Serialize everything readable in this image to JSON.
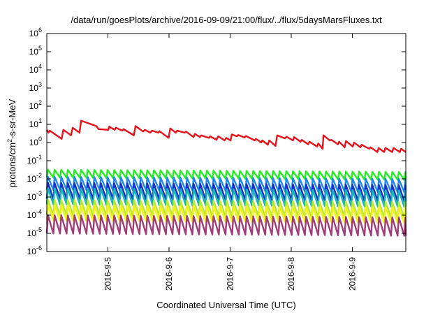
{
  "chart_data": {
    "type": "line",
    "title": "/data/run/goesPlots/archive/2016-09-09/21:00/flux/../flux/5daysMarsFluxes.txt",
    "xlabel": "Coordinated Universal Time (UTC)",
    "ylabel": {
      "base": "protons/cm",
      "sup": "2",
      "rest": "-s-sr-MeV"
    },
    "y_scale": "log",
    "ylim": [
      1e-06,
      1000000.0
    ],
    "y_ticks": [
      {
        "base": "10",
        "exp": "6",
        "value": 6
      },
      {
        "base": "10",
        "exp": "5",
        "value": 5
      },
      {
        "base": "10",
        "exp": "4",
        "value": 4
      },
      {
        "base": "10",
        "exp": "3",
        "value": 3
      },
      {
        "base": "10",
        "exp": "2",
        "value": 2
      },
      {
        "base": "10",
        "exp": "1",
        "value": 1
      },
      {
        "base": "10",
        "exp": "0",
        "value": 0
      },
      {
        "base": "10",
        "exp": "-1",
        "value": -1
      },
      {
        "base": "10",
        "exp": "-2",
        "value": -2
      },
      {
        "base": "10",
        "exp": "-3",
        "value": -3
      },
      {
        "base": "10",
        "exp": "-4",
        "value": -4
      },
      {
        "base": "10",
        "exp": "-5",
        "value": -5
      },
      {
        "base": "10",
        "exp": "-6",
        "value": -6
      }
    ],
    "xlim": [
      "2016-09-04 00:00",
      "2016-09-09 21:00"
    ],
    "x_ticks": [
      {
        "label": "2016-9-5",
        "date": "2016-09-05 00:00"
      },
      {
        "label": "2016-9-6",
        "date": "2016-09-06 00:00"
      },
      {
        "label": "2016-9-7",
        "date": "2016-09-07 00:00"
      },
      {
        "label": "2016-9-8",
        "date": "2016-09-08 00:00"
      },
      {
        "label": "2016-9-9",
        "date": "2016-09-09 00:00"
      }
    ],
    "grid": false,
    "legend": "none",
    "series": [
      {
        "color": "#e8111a",
        "points": [
          [
            "2016-09-04 00:00",
            5.0
          ],
          [
            "2016-09-04 00:40",
            3.5
          ],
          [
            "2016-09-04 01:10",
            4.5
          ],
          [
            "2016-09-04 05:50",
            1.6
          ],
          [
            "2016-09-04 06:30",
            5.0
          ],
          [
            "2016-09-04 09:30",
            2.5
          ],
          [
            "2016-09-04 10:10",
            6.5
          ],
          [
            "2016-09-04 12:50",
            3.5
          ],
          [
            "2016-09-04 13:30",
            16.0
          ],
          [
            "2016-09-04 19:30",
            8.0
          ],
          [
            "2016-09-04 20:20",
            5.5
          ],
          [
            "2016-09-05 00:10",
            5.0
          ],
          [
            "2016-09-05 00:30",
            7.5
          ],
          [
            "2016-09-05 02:40",
            5.0
          ],
          [
            "2016-09-05 03:10",
            6.5
          ],
          [
            "2016-09-05 05:40",
            4.5
          ],
          [
            "2016-09-05 06:10",
            5.5
          ],
          [
            "2016-09-05 10:10",
            2.5
          ],
          [
            "2016-09-05 10:50",
            8.0
          ],
          [
            "2016-09-05 13:50",
            4.0
          ],
          [
            "2016-09-05 14:30",
            5.0
          ],
          [
            "2016-09-05 16:40",
            3.5
          ],
          [
            "2016-09-05 17:20",
            4.5
          ],
          [
            "2016-09-05 19:50",
            3.5
          ],
          [
            "2016-09-05 20:20",
            4.2
          ],
          [
            "2016-09-05 23:50",
            1.8
          ],
          [
            "2016-09-06 00:30",
            6.0
          ],
          [
            "2016-09-06 02:40",
            3.5
          ],
          [
            "2016-09-06 03:10",
            4.5
          ],
          [
            "2016-09-06 06:10",
            3.5
          ],
          [
            "2016-09-06 06:40",
            4.0
          ],
          [
            "2016-09-06 09:40",
            2.0
          ],
          [
            "2016-09-06 10:10",
            3.0
          ],
          [
            "2016-09-06 12:10",
            2.0
          ],
          [
            "2016-09-06 12:40",
            2.5
          ],
          [
            "2016-09-06 15:40",
            1.8
          ],
          [
            "2016-09-06 16:10",
            2.2
          ],
          [
            "2016-09-06 18:40",
            1.4
          ],
          [
            "2016-09-06 19:20",
            2.2
          ],
          [
            "2016-09-06 21:50",
            1.3
          ],
          [
            "2016-09-06 22:30",
            1.8
          ],
          [
            "2016-09-07 00:10",
            1.3
          ],
          [
            "2016-09-07 00:40",
            2.8
          ],
          [
            "2016-09-07 02:40",
            2.2
          ],
          [
            "2016-09-07 03:10",
            2.6
          ],
          [
            "2016-09-07 05:40",
            1.9
          ],
          [
            "2016-09-07 06:10",
            2.3
          ],
          [
            "2016-09-07 09:40",
            1.3
          ],
          [
            "2016-09-07 10:10",
            1.6
          ],
          [
            "2016-09-07 12:10",
            1.0
          ],
          [
            "2016-09-07 12:40",
            1.3
          ],
          [
            "2016-09-07 14:50",
            0.75
          ],
          [
            "2016-09-07 15:20",
            1.3
          ],
          [
            "2016-09-07 17:50",
            0.65
          ],
          [
            "2016-09-07 18:30",
            2.5
          ],
          [
            "2016-09-07 21:30",
            1.7
          ],
          [
            "2016-09-07 22:10",
            2.1
          ],
          [
            "2016-09-08 00:40",
            1.3
          ],
          [
            "2016-09-08 01:10",
            2.0
          ],
          [
            "2016-09-08 03:40",
            1.1
          ],
          [
            "2016-09-08 04:10",
            1.4
          ],
          [
            "2016-09-08 06:40",
            0.8
          ],
          [
            "2016-09-08 07:10",
            1.1
          ],
          [
            "2016-09-08 10:10",
            0.6
          ],
          [
            "2016-09-08 10:40",
            0.9
          ],
          [
            "2016-09-08 12:20",
            0.45
          ],
          [
            "2016-09-08 12:40",
            2.5
          ],
          [
            "2016-09-08 15:10",
            1.3
          ],
          [
            "2016-09-08 15:50",
            1.4
          ],
          [
            "2016-09-08 18:20",
            0.8
          ],
          [
            "2016-09-08 18:50",
            1.1
          ],
          [
            "2016-09-08 21:00",
            0.55
          ],
          [
            "2016-09-08 21:30",
            1.2
          ],
          [
            "2016-09-09 00:10",
            0.6
          ],
          [
            "2016-09-09 00:40",
            1.0
          ],
          [
            "2016-09-09 03:10",
            0.55
          ],
          [
            "2016-09-09 03:40",
            0.75
          ],
          [
            "2016-09-09 06:40",
            0.45
          ],
          [
            "2016-09-09 07:10",
            0.55
          ],
          [
            "2016-09-09 09:50",
            0.3
          ],
          [
            "2016-09-09 10:20",
            0.5
          ],
          [
            "2016-09-09 12:30",
            0.3
          ],
          [
            "2016-09-09 13:00",
            0.5
          ],
          [
            "2016-09-09 15:40",
            0.3
          ],
          [
            "2016-09-09 16:10",
            0.5
          ],
          [
            "2016-09-09 18:40",
            0.3
          ],
          [
            "2016-09-09 19:10",
            0.45
          ],
          [
            "2016-09-09 21:00",
            0.3
          ]
        ]
      },
      {
        "color": "#22ee22",
        "sawtooth": {
          "start": "2016-09-04 00:00",
          "end": "2016-09-09 21:00",
          "period_hours": 2.6,
          "low": 0.012,
          "high": 0.032,
          "trend_end_factor": 0.75
        }
      },
      {
        "color": "#1e88ee",
        "sawtooth": {
          "start": "2016-09-04 00:00",
          "end": "2016-09-09 21:00",
          "period_hours": 2.6,
          "low": 0.0025,
          "high": 0.013,
          "trend_end_factor": 0.75
        }
      },
      {
        "color": "#1a2fc8",
        "sawtooth": {
          "start": "2016-09-04 00:00",
          "end": "2016-09-09 21:00",
          "period_hours": 2.6,
          "low": 0.0008,
          "high": 0.006,
          "trend_end_factor": 0.75
        }
      },
      {
        "color": "#15b7b5",
        "sawtooth": {
          "start": "2016-09-04 00:00",
          "end": "2016-09-09 21:00",
          "period_hours": 2.6,
          "low": 0.0004,
          "high": 0.003,
          "trend_end_factor": 0.75
        }
      },
      {
        "color": "#b8e830",
        "sawtooth": {
          "start": "2016-09-04 00:00",
          "end": "2016-09-09 21:00",
          "period_hours": 2.6,
          "low": 0.0001,
          "high": 0.0007,
          "trend_end_factor": 0.75
        }
      },
      {
        "color": "#f2f21a",
        "sawtooth": {
          "start": "2016-09-04 00:00",
          "end": "2016-09-09 21:00",
          "period_hours": 2.6,
          "low": 5e-05,
          "high": 0.00035,
          "trend_end_factor": 0.75
        }
      },
      {
        "color": "#a03c78",
        "sawtooth": {
          "start": "2016-09-04 00:00",
          "end": "2016-09-09 21:00",
          "period_hours": 2.6,
          "low": 1e-05,
          "high": 0.0001,
          "trend_end_factor": 0.75
        }
      }
    ]
  }
}
